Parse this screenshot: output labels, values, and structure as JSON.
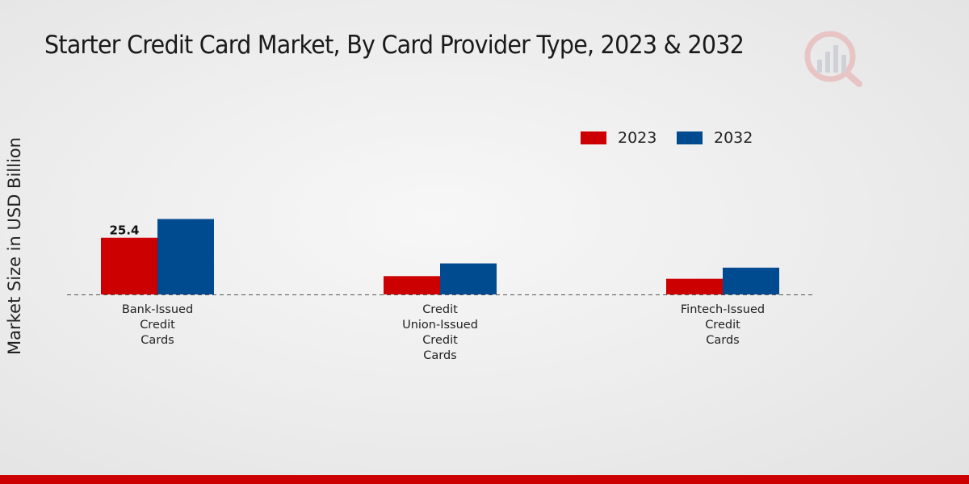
{
  "chart_data": {
    "type": "bar",
    "title": "Starter Credit Card Market, By Card Provider Type, 2023 & 2032",
    "xlabel": "",
    "ylabel": "Market Size in USD Billion",
    "categories": [
      [
        "Bank-Issued",
        "Credit",
        "Cards"
      ],
      [
        "Credit",
        "Union-Issued",
        "Credit",
        "Cards"
      ],
      [
        "Fintech-Issued",
        "Credit",
        "Cards"
      ]
    ],
    "series": [
      {
        "name": "2023",
        "color": "#cc0000",
        "values": [
          25.4,
          8.2,
          7.0
        ]
      },
      {
        "name": "2032",
        "color": "#004a8f",
        "values": [
          33.8,
          13.9,
          12.0
        ]
      }
    ],
    "data_labels": [
      {
        "series": 0,
        "index": 0,
        "text": "25.4"
      }
    ],
    "ylim": [
      0,
      40
    ],
    "grid": false,
    "legend_position": "top-right"
  }
}
